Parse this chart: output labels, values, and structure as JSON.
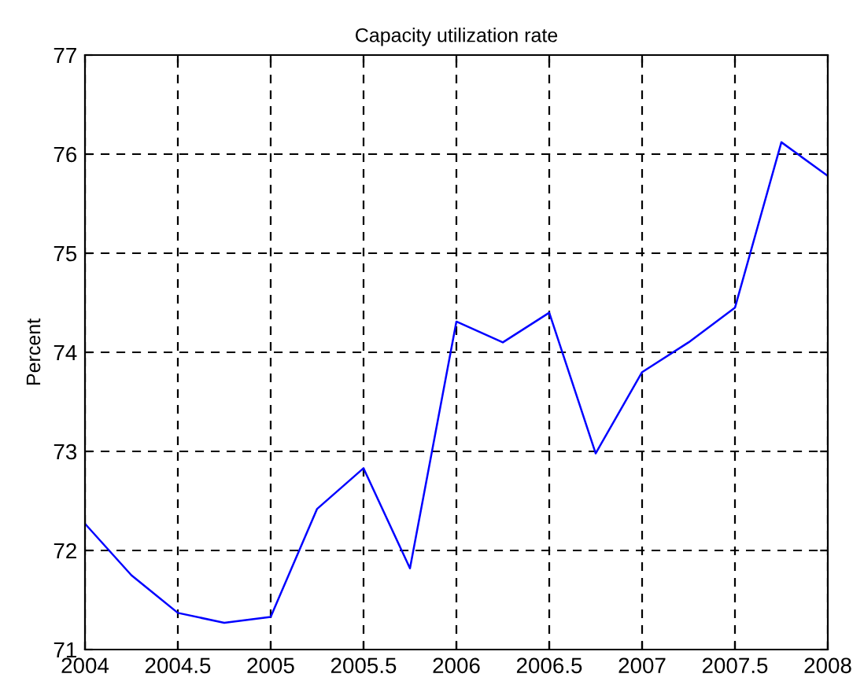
{
  "chart_data": {
    "type": "line",
    "title": "Capacity utilization rate",
    "ylabel": "Percent",
    "x": [
      2004,
      2004.25,
      2004.5,
      2004.75,
      2005,
      2005.25,
      2005.5,
      2005.75,
      2006,
      2006.25,
      2006.5,
      2006.75,
      2007,
      2007.25,
      2007.5,
      2007.75,
      2008
    ],
    "series": [
      {
        "color": "#0000ff",
        "values": [
          72.27,
          71.75,
          71.37,
          71.27,
          71.33,
          72.42,
          72.83,
          71.82,
          74.31,
          74.1,
          74.4,
          72.98,
          73.8,
          74.1,
          74.45,
          76.12,
          75.78
        ]
      }
    ],
    "xlim": [
      2004,
      2008
    ],
    "xticks": [
      2004,
      2004.5,
      2005,
      2005.5,
      2006,
      2006.5,
      2007,
      2007.5,
      2008
    ],
    "ylim": [
      71,
      77
    ],
    "yticks": [
      71,
      72,
      73,
      74,
      75,
      76,
      77
    ],
    "grid": true,
    "line_style": "solid",
    "marker": "none",
    "legend": false
  }
}
